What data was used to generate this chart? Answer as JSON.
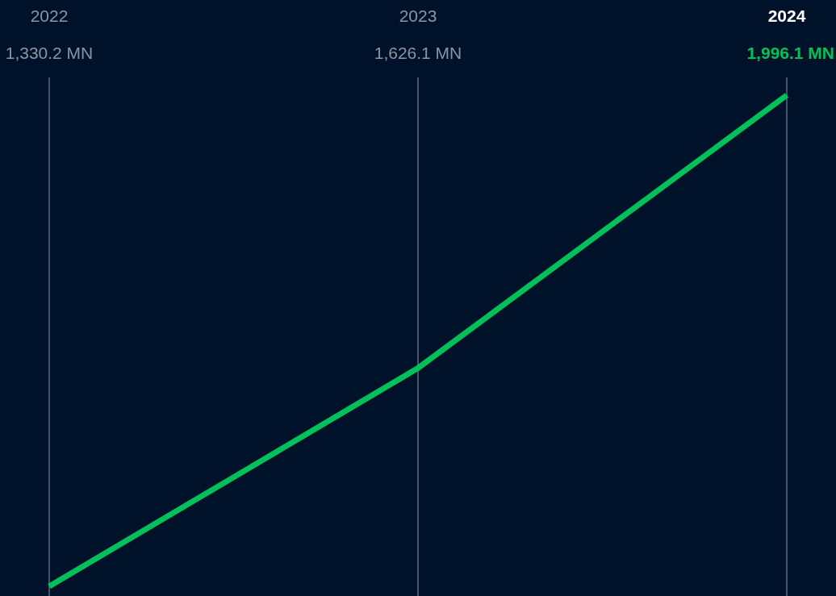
{
  "chart_data": {
    "type": "line",
    "categories": [
      "2022",
      "2023",
      "2024"
    ],
    "series": [
      {
        "color": "#00c05a",
        "values": [
          1330.2,
          1626.1,
          1996.1
        ],
        "value_labels": [
          "1,330.2 MN",
          "1,626.1 MN",
          "1,996.1 MN"
        ]
      }
    ],
    "grid": "x",
    "marker": "none",
    "line_style": "solid"
  }
}
